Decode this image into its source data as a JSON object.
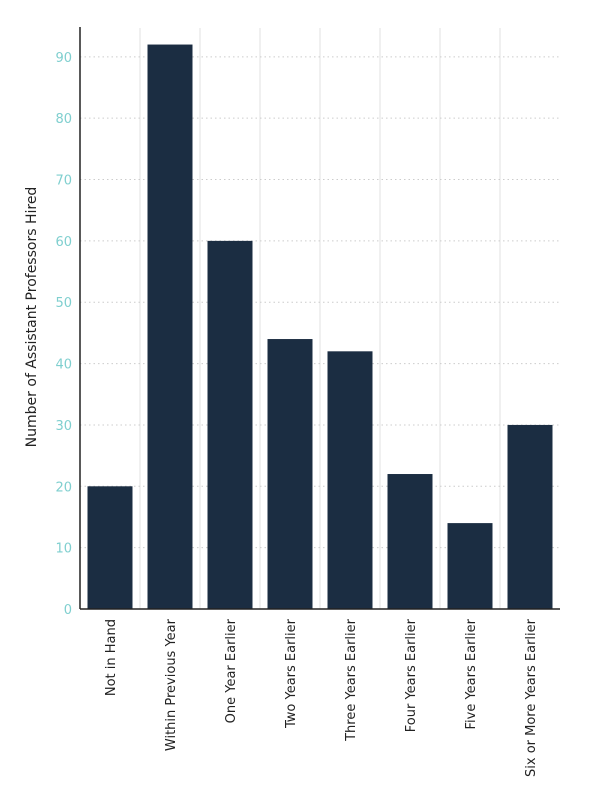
{
  "chart_data": {
    "type": "bar",
    "title": "",
    "xlabel": "",
    "ylabel": "Number of Assistant Professors Hired",
    "categories": [
      "Not in Hand",
      "Within Previous Year",
      "One Year Earlier",
      "Two Years Earlier",
      "Three Years Earlier",
      "Four Years Earlier",
      "Five Years Earlier",
      "Six or More Years Earlier"
    ],
    "values": [
      20,
      92,
      60,
      44,
      42,
      22,
      14,
      30
    ],
    "ylim": [
      0,
      96
    ],
    "yticks": [
      0,
      10,
      20,
      30,
      40,
      50,
      60,
      70,
      80,
      90
    ],
    "grid": true,
    "colors": {
      "bar": "#1b2d42",
      "tick_label": "#7fcfcf",
      "axis": "#222222"
    }
  }
}
